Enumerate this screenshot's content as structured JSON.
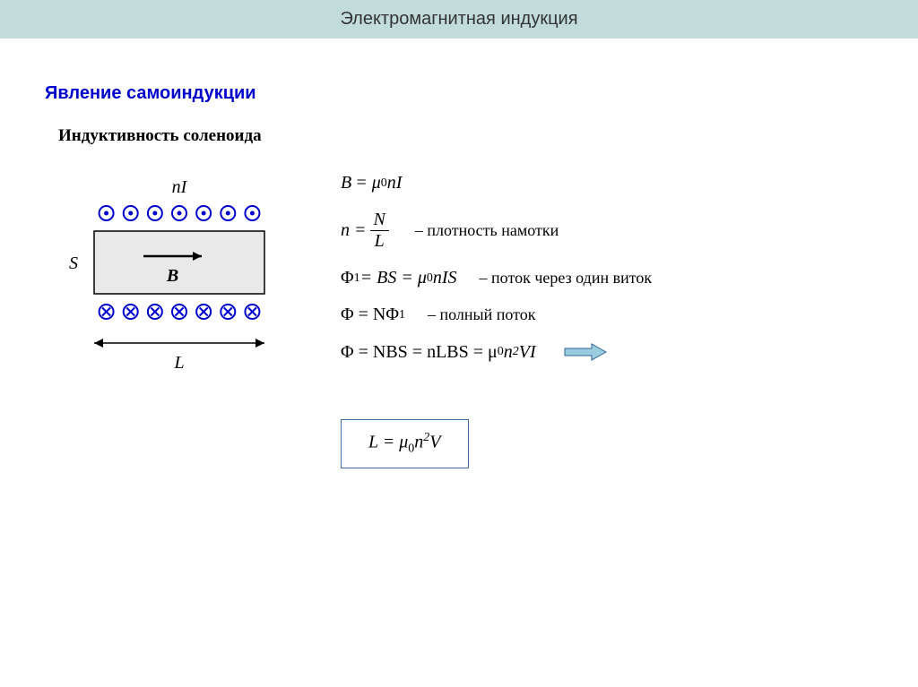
{
  "header": {
    "title": "Электромагнитная индукция"
  },
  "section": {
    "title": "Явление самоиндукции",
    "subtitle": "Индуктивность соленоида"
  },
  "diagram": {
    "top_label": "nI",
    "left_label": "S",
    "center_label": "B",
    "bottom_label": "L",
    "solenoid_fill": "#e9e9e9",
    "solenoid_stroke": "#000000",
    "dot_color": "#0000cc",
    "cross_color": "#0000cc",
    "rect_w": 190,
    "rect_h": 70,
    "n_marks": 7
  },
  "formulas": {
    "f1_lhs": "B",
    "f1_rhs_a": "= μ",
    "f1_rhs_sub": "0",
    "f1_rhs_b": "nI",
    "f2_lhs": "n =",
    "f2_num": "N",
    "f2_den": "L",
    "f2_desc": "– плотность намотки",
    "f3_a": "Φ",
    "f3_sub1": "1",
    "f3_b": " = BS = μ",
    "f3_sub2": "0",
    "f3_c": "nIS",
    "f3_desc": "– поток через один виток",
    "f4_a": "Φ = NΦ",
    "f4_sub": "1",
    "f4_desc": "– полный поток",
    "f5_a": "Φ = NBS = nLBS = μ",
    "f5_sub": "0",
    "f5_b": "n",
    "f5_sup": "2",
    "f5_c": "VI",
    "boxed_a": "L = μ",
    "boxed_sub": "0",
    "boxed_b": "n",
    "boxed_sup": "2",
    "boxed_c": "V"
  },
  "colors": {
    "header_bg": "#c2dcdc",
    "title_color": "#0000cc",
    "box_border": "#3a6ea5",
    "arrow_fill": "#99ccdd",
    "arrow_stroke": "#336699"
  }
}
